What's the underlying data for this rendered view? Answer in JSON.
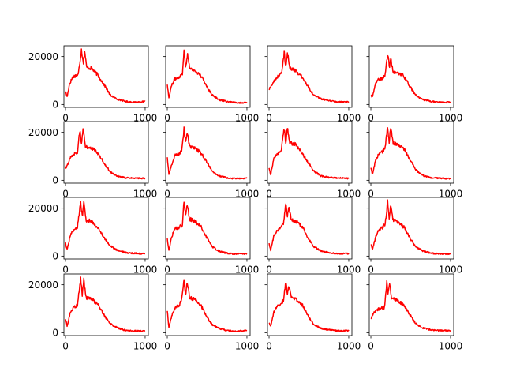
{
  "figure": {
    "background": "#ffffff"
  },
  "chart_data": {
    "type": "line",
    "layout": "4x4 grid of small multiples",
    "shared_y": true,
    "title": "",
    "xlabel": "",
    "ylabel": "",
    "grid": false,
    "legend": "none",
    "color": "#ff0000",
    "xlim": [
      -20,
      1040
    ],
    "ylim": [
      -1200,
      24500
    ],
    "xticks": [
      0,
      1000
    ],
    "xtick_labels": [
      "0",
      "1000"
    ],
    "yticks": [
      0,
      20000
    ],
    "ytick_labels": [
      "0",
      "20000"
    ],
    "panels": [
      {
        "shape": [
          [
            0,
            5500
          ],
          [
            20,
            3200
          ],
          [
            50,
            8500
          ],
          [
            90,
            11500
          ],
          [
            160,
            12500
          ],
          [
            200,
            22800
          ],
          [
            225,
            17500
          ],
          [
            240,
            22500
          ],
          [
            265,
            15500
          ],
          [
            330,
            15000
          ],
          [
            400,
            12500
          ],
          [
            500,
            7500
          ],
          [
            560,
            4000
          ],
          [
            650,
            2200
          ],
          [
            750,
            1300
          ],
          [
            850,
            900
          ],
          [
            1000,
            1200
          ]
        ]
      },
      {
        "shape": [
          [
            0,
            8500
          ],
          [
            20,
            2800
          ],
          [
            50,
            7500
          ],
          [
            90,
            10500
          ],
          [
            150,
            11500
          ],
          [
            190,
            13000
          ],
          [
            210,
            22800
          ],
          [
            230,
            15500
          ],
          [
            255,
            20800
          ],
          [
            285,
            15000
          ],
          [
            350,
            14000
          ],
          [
            420,
            12000
          ],
          [
            500,
            7500
          ],
          [
            560,
            4000
          ],
          [
            650,
            2000
          ],
          [
            750,
            1200
          ],
          [
            850,
            800
          ],
          [
            1000,
            700
          ]
        ]
      },
      {
        "shape": [
          [
            0,
            6200
          ],
          [
            30,
            8000
          ],
          [
            70,
            10000
          ],
          [
            120,
            12000
          ],
          [
            160,
            13200
          ],
          [
            190,
            21800
          ],
          [
            210,
            15800
          ],
          [
            230,
            21800
          ],
          [
            260,
            15000
          ],
          [
            330,
            14300
          ],
          [
            400,
            12000
          ],
          [
            500,
            7000
          ],
          [
            560,
            4000
          ],
          [
            650,
            2400
          ],
          [
            750,
            1600
          ],
          [
            850,
            1100
          ],
          [
            1000,
            1000
          ]
        ]
      },
      {
        "shape": [
          [
            0,
            4000
          ],
          [
            20,
            3000
          ],
          [
            60,
            9000
          ],
          [
            100,
            10500
          ],
          [
            150,
            11000
          ],
          [
            180,
            12500
          ],
          [
            210,
            21000
          ],
          [
            235,
            15500
          ],
          [
            250,
            19500
          ],
          [
            280,
            13500
          ],
          [
            340,
            13000
          ],
          [
            400,
            12500
          ],
          [
            500,
            7000
          ],
          [
            560,
            4000
          ],
          [
            650,
            2000
          ],
          [
            750,
            1300
          ],
          [
            850,
            1000
          ],
          [
            1000,
            900
          ]
        ]
      },
      {
        "shape": [
          [
            0,
            4800
          ],
          [
            20,
            6000
          ],
          [
            60,
            9500
          ],
          [
            100,
            11000
          ],
          [
            150,
            11500
          ],
          [
            180,
            21000
          ],
          [
            200,
            15500
          ],
          [
            220,
            21500
          ],
          [
            250,
            14000
          ],
          [
            330,
            13500
          ],
          [
            400,
            11500
          ],
          [
            500,
            6500
          ],
          [
            560,
            3600
          ],
          [
            650,
            1800
          ],
          [
            750,
            1000
          ],
          [
            850,
            1000
          ],
          [
            1000,
            800
          ]
        ]
      },
      {
        "shape": [
          [
            0,
            9500
          ],
          [
            20,
            2500
          ],
          [
            60,
            7000
          ],
          [
            100,
            10500
          ],
          [
            150,
            11000
          ],
          [
            180,
            12500
          ],
          [
            210,
            21500
          ],
          [
            230,
            16000
          ],
          [
            250,
            19800
          ],
          [
            280,
            14000
          ],
          [
            340,
            13500
          ],
          [
            420,
            11500
          ],
          [
            500,
            7500
          ],
          [
            560,
            4000
          ],
          [
            650,
            1800
          ],
          [
            750,
            1000
          ],
          [
            850,
            700
          ],
          [
            1000,
            800
          ]
        ]
      },
      {
        "shape": [
          [
            0,
            5000
          ],
          [
            20,
            2500
          ],
          [
            60,
            9000
          ],
          [
            100,
            11000
          ],
          [
            150,
            12000
          ],
          [
            190,
            21800
          ],
          [
            210,
            15800
          ],
          [
            230,
            21800
          ],
          [
            260,
            15500
          ],
          [
            330,
            15000
          ],
          [
            400,
            12000
          ],
          [
            500,
            7000
          ],
          [
            560,
            4000
          ],
          [
            650,
            1800
          ],
          [
            750,
            1200
          ],
          [
            850,
            1000
          ],
          [
            1000,
            800
          ]
        ]
      },
      {
        "shape": [
          [
            0,
            5000
          ],
          [
            20,
            2500
          ],
          [
            60,
            8500
          ],
          [
            100,
            11000
          ],
          [
            150,
            12000
          ],
          [
            180,
            14000
          ],
          [
            210,
            21800
          ],
          [
            230,
            16000
          ],
          [
            250,
            22000
          ],
          [
            280,
            15500
          ],
          [
            340,
            15000
          ],
          [
            420,
            13000
          ],
          [
            500,
            8000
          ],
          [
            560,
            4500
          ],
          [
            650,
            2000
          ],
          [
            750,
            1000
          ],
          [
            850,
            900
          ],
          [
            1000,
            600
          ]
        ]
      },
      {
        "shape": [
          [
            0,
            5500
          ],
          [
            20,
            2800
          ],
          [
            60,
            8500
          ],
          [
            100,
            11000
          ],
          [
            150,
            12000
          ],
          [
            190,
            22500
          ],
          [
            210,
            16500
          ],
          [
            230,
            22000
          ],
          [
            260,
            15000
          ],
          [
            330,
            14500
          ],
          [
            400,
            12000
          ],
          [
            500,
            7000
          ],
          [
            560,
            4200
          ],
          [
            650,
            2500
          ],
          [
            750,
            1500
          ],
          [
            850,
            1200
          ],
          [
            1000,
            1000
          ]
        ]
      },
      {
        "shape": [
          [
            0,
            7000
          ],
          [
            20,
            2500
          ],
          [
            60,
            8500
          ],
          [
            100,
            11500
          ],
          [
            150,
            12000
          ],
          [
            190,
            13000
          ],
          [
            210,
            23000
          ],
          [
            230,
            17000
          ],
          [
            250,
            21500
          ],
          [
            280,
            15500
          ],
          [
            350,
            14500
          ],
          [
            420,
            12500
          ],
          [
            500,
            7500
          ],
          [
            560,
            4000
          ],
          [
            650,
            2000
          ],
          [
            750,
            1200
          ],
          [
            850,
            900
          ],
          [
            1000,
            1000
          ]
        ]
      },
      {
        "shape": [
          [
            0,
            5000
          ],
          [
            20,
            2500
          ],
          [
            60,
            8500
          ],
          [
            100,
            10500
          ],
          [
            150,
            12000
          ],
          [
            180,
            13500
          ],
          [
            210,
            21500
          ],
          [
            230,
            16500
          ],
          [
            250,
            20800
          ],
          [
            280,
            15000
          ],
          [
            340,
            14500
          ],
          [
            420,
            12000
          ],
          [
            500,
            7000
          ],
          [
            560,
            4000
          ],
          [
            650,
            2200
          ],
          [
            750,
            1400
          ],
          [
            850,
            1000
          ],
          [
            1000,
            1100
          ]
        ]
      },
      {
        "shape": [
          [
            0,
            5000
          ],
          [
            20,
            2500
          ],
          [
            60,
            8000
          ],
          [
            100,
            11000
          ],
          [
            150,
            12000
          ],
          [
            180,
            13500
          ],
          [
            210,
            22500
          ],
          [
            230,
            16000
          ],
          [
            250,
            21500
          ],
          [
            280,
            15000
          ],
          [
            340,
            14000
          ],
          [
            420,
            12000
          ],
          [
            500,
            7000
          ],
          [
            560,
            4000
          ],
          [
            650,
            2200
          ],
          [
            750,
            1200
          ],
          [
            850,
            1000
          ],
          [
            1000,
            900
          ]
        ]
      },
      {
        "shape": [
          [
            0,
            6000
          ],
          [
            20,
            2500
          ],
          [
            60,
            8500
          ],
          [
            100,
            10500
          ],
          [
            150,
            11500
          ],
          [
            190,
            22500
          ],
          [
            210,
            15500
          ],
          [
            230,
            21800
          ],
          [
            260,
            14500
          ],
          [
            330,
            14000
          ],
          [
            400,
            12000
          ],
          [
            500,
            6500
          ],
          [
            560,
            3800
          ],
          [
            650,
            2000
          ],
          [
            750,
            1000
          ],
          [
            850,
            800
          ],
          [
            1000,
            700
          ]
        ]
      },
      {
        "shape": [
          [
            0,
            9500
          ],
          [
            20,
            2200
          ],
          [
            60,
            7500
          ],
          [
            100,
            10500
          ],
          [
            150,
            11500
          ],
          [
            180,
            13500
          ],
          [
            210,
            21800
          ],
          [
            230,
            15500
          ],
          [
            250,
            21200
          ],
          [
            280,
            14500
          ],
          [
            340,
            14000
          ],
          [
            420,
            11500
          ],
          [
            500,
            6500
          ],
          [
            560,
            3500
          ],
          [
            650,
            1800
          ],
          [
            750,
            900
          ],
          [
            850,
            600
          ],
          [
            1000,
            900
          ]
        ]
      },
      {
        "shape": [
          [
            0,
            4000
          ],
          [
            20,
            3000
          ],
          [
            60,
            8500
          ],
          [
            100,
            11000
          ],
          [
            150,
            12000
          ],
          [
            180,
            13500
          ],
          [
            210,
            21200
          ],
          [
            230,
            16000
          ],
          [
            250,
            19500
          ],
          [
            280,
            14500
          ],
          [
            340,
            14000
          ],
          [
            420,
            11500
          ],
          [
            500,
            6500
          ],
          [
            560,
            3500
          ],
          [
            650,
            1800
          ],
          [
            750,
            1200
          ],
          [
            850,
            800
          ],
          [
            1000,
            900
          ]
        ]
      },
      {
        "shape": [
          [
            0,
            6000
          ],
          [
            30,
            8000
          ],
          [
            80,
            9500
          ],
          [
            130,
            10500
          ],
          [
            170,
            10500
          ],
          [
            200,
            21000
          ],
          [
            215,
            16500
          ],
          [
            235,
            21000
          ],
          [
            260,
            14500
          ],
          [
            330,
            13500
          ],
          [
            400,
            12000
          ],
          [
            500,
            7000
          ],
          [
            560,
            3800
          ],
          [
            650,
            2000
          ],
          [
            750,
            1200
          ],
          [
            850,
            900
          ],
          [
            1000,
            900
          ]
        ]
      }
    ]
  }
}
